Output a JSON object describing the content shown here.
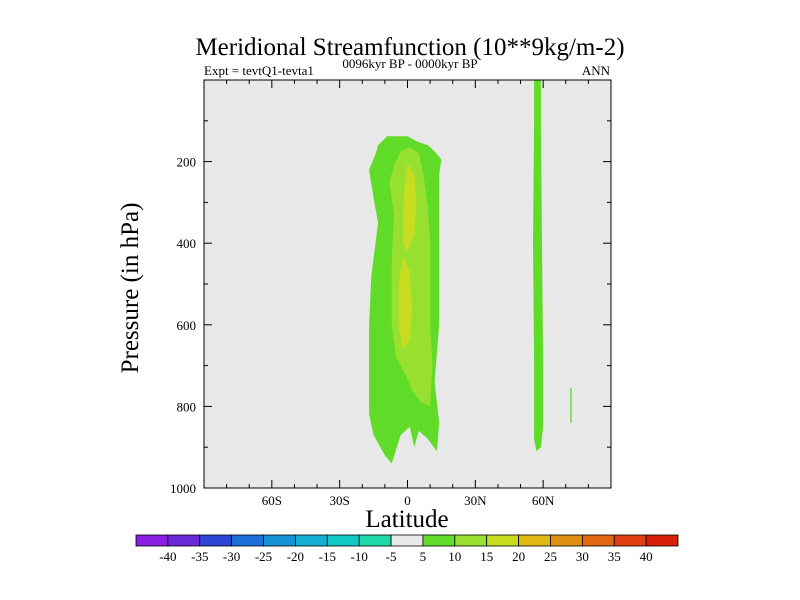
{
  "chart_data": {
    "type": "filled-contour",
    "title": "Meridional Streamfunction (10**9kg/m-2)",
    "subtitle": "0096kyr BP - 0000kyr BP",
    "left_label": "Expt = tevtQ1-tevta1",
    "right_label": "ANN",
    "xlabel": "Latitude",
    "ylabel": "Pressure (in hPa)",
    "xlim": [
      -90,
      90
    ],
    "ylim": [
      1000,
      0
    ],
    "x_ticks": [
      {
        "value": -60,
        "label": "60S"
      },
      {
        "value": -30,
        "label": "30S"
      },
      {
        "value": 0,
        "label": "0"
      },
      {
        "value": 30,
        "label": "30N"
      },
      {
        "value": 60,
        "label": "60N"
      }
    ],
    "y_ticks": [
      {
        "value": 200,
        "label": "200"
      },
      {
        "value": 400,
        "label": "400"
      },
      {
        "value": 600,
        "label": "600"
      },
      {
        "value": 800,
        "label": "800"
      },
      {
        "value": 1000,
        "label": "1000"
      }
    ],
    "background_color": "#e8e8e8",
    "colorbar": {
      "levels": [
        -40,
        -35,
        -30,
        -25,
        -20,
        -15,
        -10,
        -5,
        5,
        10,
        15,
        20,
        25,
        30,
        35,
        40
      ],
      "labels": [
        "-40",
        "-35",
        "-30",
        "-25",
        "-20",
        "-15",
        "-10",
        "-5",
        "5",
        "10",
        "15",
        "20",
        "25",
        "30",
        "35",
        "40"
      ],
      "colors": [
        "#8a1fe0",
        "#6a28d8",
        "#2f45d8",
        "#1b6fd8",
        "#1592d4",
        "#12b0d2",
        "#10c8c4",
        "#20d8a8",
        "#e8e8e8",
        "#60dc28",
        "#98e030",
        "#c8dc20",
        "#e0b812",
        "#e09010",
        "#e06810",
        "#e04010",
        "#d82008"
      ]
    },
    "regions": [
      {
        "name": "tropical-cell-outer",
        "level": "5 to 10",
        "color": "#60dc28",
        "polygon": [
          [
            -9,
            138
          ],
          [
            0,
            138
          ],
          [
            4,
            150
          ],
          [
            9,
            160
          ],
          [
            12,
            175
          ],
          [
            15,
            195
          ],
          [
            14,
            230
          ],
          [
            14,
            290
          ],
          [
            14,
            400
          ],
          [
            14,
            600
          ],
          [
            12,
            740
          ],
          [
            14,
            840
          ],
          [
            13,
            910
          ],
          [
            9,
            880
          ],
          [
            5,
            860
          ],
          [
            3,
            900
          ],
          [
            1,
            850
          ],
          [
            -3,
            870
          ],
          [
            -7,
            940
          ],
          [
            -10,
            920
          ],
          [
            -15,
            870
          ],
          [
            -17,
            820
          ],
          [
            -17,
            720
          ],
          [
            -17,
            600
          ],
          [
            -16,
            480
          ],
          [
            -13,
            350
          ],
          [
            -15,
            290
          ],
          [
            -17,
            220
          ],
          [
            -14,
            180
          ],
          [
            -13,
            160
          ]
        ]
      },
      {
        "name": "tropical-cell-mid",
        "level": "10 to 15",
        "color": "#98e030",
        "polygon": [
          [
            -3,
            175
          ],
          [
            1,
            165
          ],
          [
            5,
            180
          ],
          [
            7,
            230
          ],
          [
            9,
            310
          ],
          [
            10,
            400
          ],
          [
            10,
            600
          ],
          [
            11,
            700
          ],
          [
            10,
            800
          ],
          [
            6,
            790
          ],
          [
            2,
            760
          ],
          [
            -1,
            720
          ],
          [
            -5,
            680
          ],
          [
            -7,
            600
          ],
          [
            -7,
            450
          ],
          [
            -6,
            330
          ],
          [
            -8,
            250
          ],
          [
            -6,
            210
          ]
        ]
      },
      {
        "name": "tropical-cell-core",
        "level": "15 to 20",
        "color": "#c8dc20",
        "polygon": [
          [
            0,
            205
          ],
          [
            3,
            230
          ],
          [
            4,
            300
          ],
          [
            3,
            380
          ],
          [
            0,
            420
          ],
          [
            -2,
            400
          ],
          [
            -2,
            320
          ],
          [
            -1,
            250
          ]
        ]
      },
      {
        "name": "tropical-cell-lower-core",
        "level": "15 to 20",
        "color": "#c8dc20",
        "polygon": [
          [
            -2,
            430
          ],
          [
            1,
            470
          ],
          [
            2,
            560
          ],
          [
            1,
            640
          ],
          [
            -2,
            660
          ],
          [
            -4,
            600
          ],
          [
            -4,
            500
          ]
        ]
      },
      {
        "name": "northern-strip",
        "level": "5 to 10",
        "color": "#60dc28",
        "polygon": [
          [
            56,
            0
          ],
          [
            59,
            0
          ],
          [
            59,
            100
          ],
          [
            59.5,
            400
          ],
          [
            60,
            700
          ],
          [
            60,
            850
          ],
          [
            59,
            900
          ],
          [
            57,
            910
          ],
          [
            56,
            880
          ],
          [
            56,
            700
          ],
          [
            55.5,
            400
          ],
          [
            56,
            100
          ]
        ]
      },
      {
        "name": "small-north-strip",
        "level": "5 to 10",
        "color": "#60dc28",
        "polygon": [
          [
            72,
            755
          ],
          [
            72.6,
            755
          ],
          [
            72.6,
            840
          ],
          [
            72,
            840
          ]
        ]
      }
    ]
  }
}
